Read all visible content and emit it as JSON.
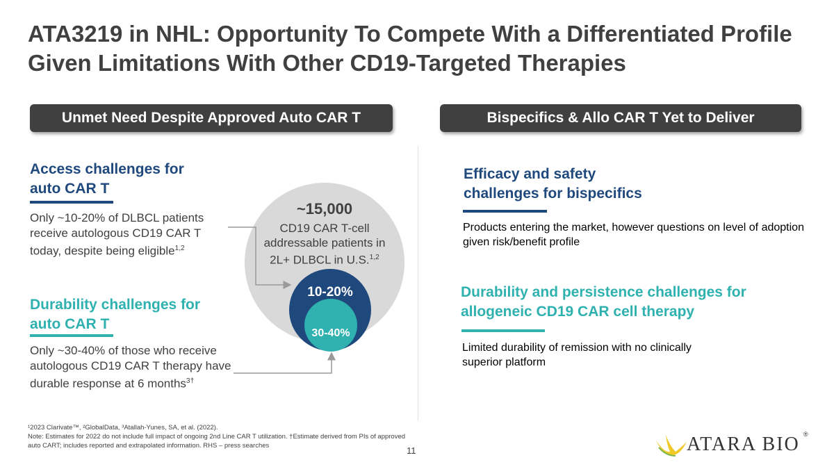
{
  "title": "ATA3219 in NHL: Opportunity To Compete With a Differentiated Profile Given Limitations With Other CD19-Targeted Therapies",
  "left": {
    "banner": "Unmet Need Despite Approved Auto CAR T",
    "access": {
      "heading": "Access challenges for auto CAR T",
      "text": "Only ~10-20% of DLBCL patients receive autologous CD19 CAR T today, despite being eligible",
      "sup": "1,2"
    },
    "durability": {
      "heading": "Durability challenges for auto CAR T",
      "text": "Only ~30-40% of those who receive autologous CD19 CAR T therapy have durable response at 6 months",
      "sup": "3†"
    }
  },
  "circle": {
    "big_number": "~15,000",
    "description": "CD19 CAR T-cell addressable patients in 2L+ DLBCL in U.S.",
    "sup": "1,2",
    "inner_label": "10-20%",
    "core_label": "30-40%",
    "colors": {
      "outer": "#d9d9d9",
      "inner": "#1f497d",
      "core": "#2fb1b0"
    }
  },
  "right": {
    "banner": "Bispecifics & Allo CAR T Yet to Deliver",
    "efficacy": {
      "heading": "Efficacy and safety challenges for bispecifics",
      "text": "Products entering the market, however questions on level of adoption given risk/benefit profile"
    },
    "persistence": {
      "heading": "Durability and persistence challenges for allogeneic CD19 CAR cell therapy",
      "text": "Limited durability of remission with no clinically superior  platform"
    }
  },
  "footnotes": {
    "line1": "¹2023 Clarivate™, ²GlobalData, ³Atallah-Yunes, SA, et al. (2022).",
    "line2": "Note: Estimates for 2022 do not include full impact of ongoing 2nd Line CAR T utilization. †Estimate derived from PIs of approved auto CART; includes reported and extrapolated information. RHS – press searches"
  },
  "page_number": "11",
  "logo": {
    "text": "ATARA BIO",
    "mark": "®"
  }
}
